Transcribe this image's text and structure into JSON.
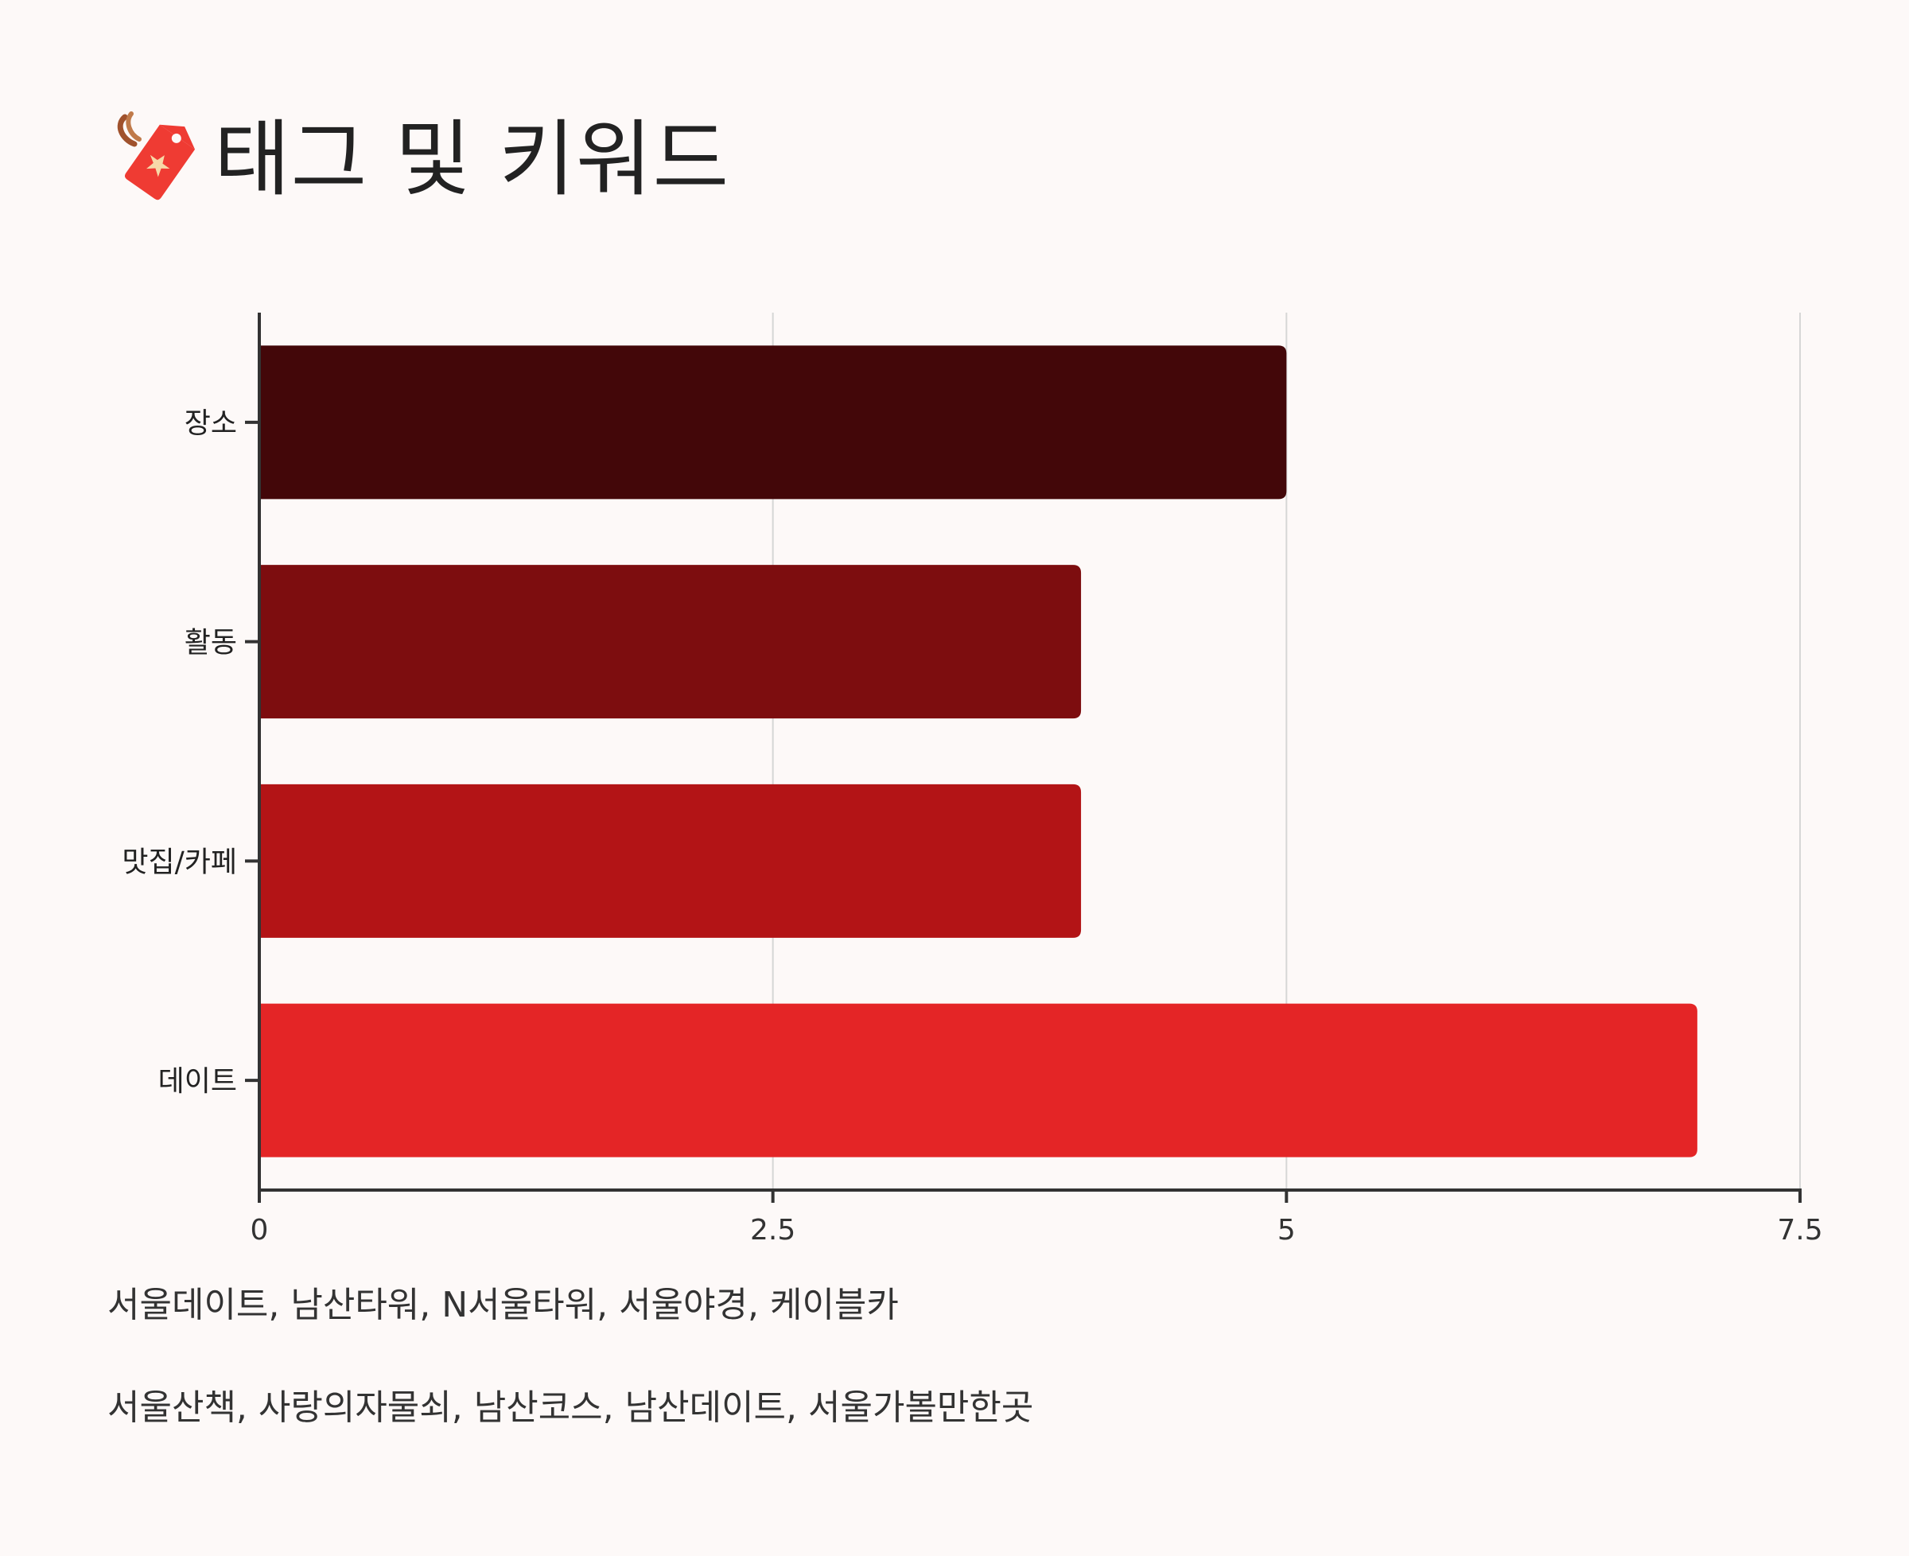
{
  "title": {
    "icon": "tag-icon",
    "text": "태그 및 키워드"
  },
  "chart_data": {
    "type": "bar",
    "orientation": "horizontal",
    "categories": [
      "장소",
      "활동",
      "맛집/카페",
      "데이트"
    ],
    "values": [
      5,
      4,
      4,
      7
    ],
    "colors": [
      "#430709",
      "#7d0d0f",
      "#b31416",
      "#e42526"
    ],
    "xlim": [
      0,
      7.5
    ],
    "xticks": [
      "0",
      "2.5",
      "5",
      "7.5"
    ],
    "grid": true,
    "xlabel": "",
    "ylabel": ""
  },
  "keywords": {
    "line1": "서울데이트, 남산타워, N서울타워, 서울야경, 케이블카",
    "line2": "서울산책, 사랑의자물쇠, 남산코스, 남산데이트, 서울가볼만한곳"
  },
  "colors": {
    "background": "#fdf9f8",
    "axis": "#333333",
    "grid": "#d6d6d6"
  }
}
